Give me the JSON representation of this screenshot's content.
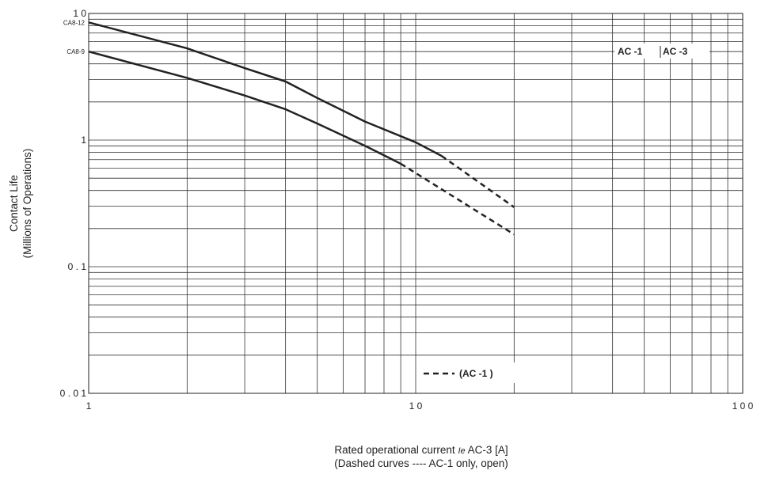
{
  "chart_data": {
    "type": "line",
    "title": "",
    "xlabel": {
      "line1_prefix": "Rated operational current ",
      "line1_symbol": "Ie",
      "line1_suffix": " AC-3 [A]",
      "line2": "(Dashed curves ---- AC-1 only, open)"
    },
    "ylabel": {
      "line1": "Contact Life",
      "line2": "(Millions of Operations)"
    },
    "xscale": "log",
    "yscale": "log",
    "xlim": [
      1,
      100
    ],
    "ylim": [
      0.01,
      10
    ],
    "xticks": [
      {
        "value": 1,
        "label": "1"
      },
      {
        "value": 10,
        "label": "1 0"
      },
      {
        "value": 100,
        "label": "1 0 0"
      }
    ],
    "yticks": [
      {
        "value": 0.01,
        "label": "0 . 0 1"
      },
      {
        "value": 0.1,
        "label": "0 . 1"
      },
      {
        "value": 1,
        "label": "1"
      },
      {
        "value": 10,
        "label": "1 0"
      }
    ],
    "grid": true,
    "series": [
      {
        "name": "CA8-12",
        "solid": [
          [
            1,
            8.5
          ],
          [
            2,
            5.3
          ],
          [
            3,
            3.7
          ],
          [
            4,
            2.9
          ],
          [
            5,
            2.15
          ],
          [
            7,
            1.4
          ],
          [
            10,
            0.96
          ],
          [
            12,
            0.75
          ]
        ],
        "dashed": [
          [
            12,
            0.75
          ],
          [
            20,
            0.295
          ]
        ]
      },
      {
        "name": "CA8-9",
        "solid": [
          [
            1,
            5.0
          ],
          [
            2,
            3.1
          ],
          [
            3,
            2.25
          ],
          [
            4,
            1.75
          ],
          [
            5,
            1.35
          ],
          [
            7,
            0.9
          ],
          [
            9,
            0.65
          ]
        ],
        "dashed": [
          [
            9,
            0.65
          ],
          [
            20,
            0.18
          ]
        ]
      }
    ],
    "legend_ac3": "AC -1",
    "legend_ac3b": "AC -3",
    "legend_dashed": "(AC -1 )",
    "legend_positions": {
      "type_box": "upper-right",
      "dashed": "lower-center"
    }
  }
}
